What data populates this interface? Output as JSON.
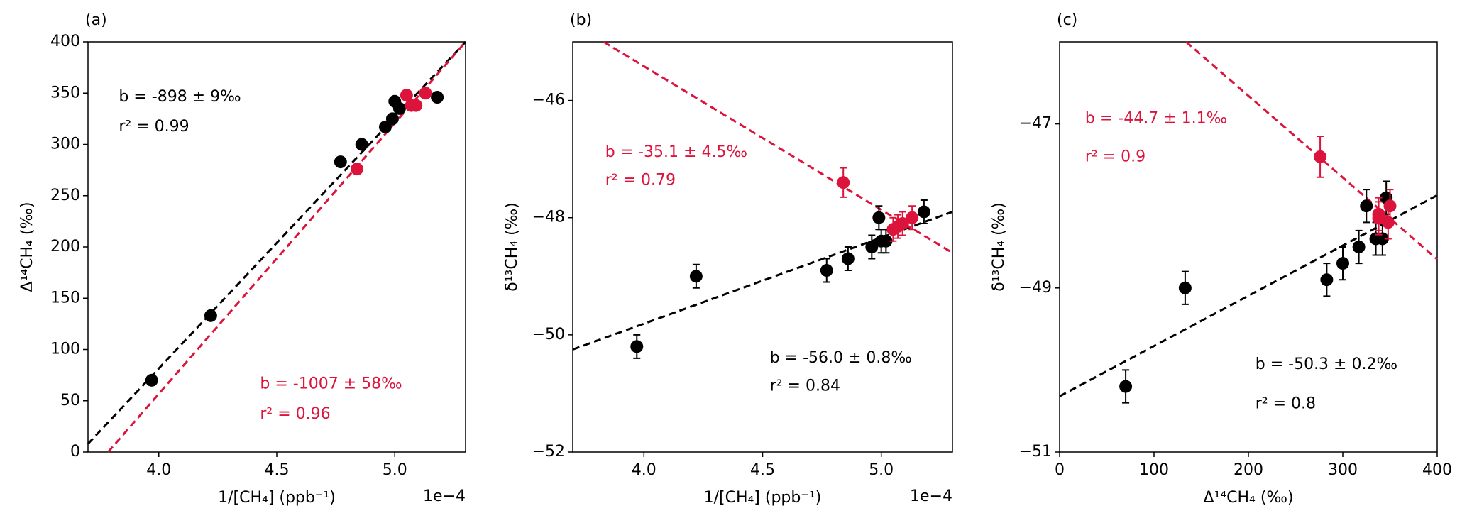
{
  "chart_data": [
    {
      "type": "scatter",
      "panel_label": "(a)",
      "xlabel": "1/[CH₄]  (ppb⁻¹)",
      "ylabel": "Δ¹⁴CH₄ (‰)",
      "x_offset_label": "1e−4",
      "xlim": [
        3.7,
        5.3
      ],
      "ylim": [
        0,
        400
      ],
      "xticks": [
        {
          "value": 4,
          "label": "4.0"
        },
        4.5,
        {
          "value": 5,
          "label": "5.0"
        }
      ],
      "yticks": [
        0,
        50,
        100,
        150,
        200,
        250,
        300,
        350,
        400
      ],
      "series": [
        {
          "color": "#000000",
          "x": [
            3.97,
            4.22,
            4.77,
            4.86,
            4.96,
            4.99,
            5.0,
            5.02,
            5.18
          ],
          "values": [
            70,
            133,
            283,
            300,
            317,
            325,
            342,
            335,
            346
          ]
        },
        {
          "color": "#dc143c",
          "x": [
            4.84,
            5.05,
            5.07,
            5.09,
            5.13
          ],
          "values": [
            276,
            348,
            338,
            338,
            350
          ]
        }
      ],
      "fits": [
        {
          "color": "#000000",
          "x": [
            3.7,
            5.3
          ],
          "values": [
            8,
            400
          ]
        },
        {
          "color": "#dc143c",
          "x": [
            3.785,
            5.3
          ],
          "values": [
            0,
            400
          ]
        }
      ],
      "annotations": [
        {
          "text": "b = -898 ± 9‰",
          "color": "#000000"
        },
        {
          "text": "r² = 0.99",
          "color": "#000000"
        },
        {
          "text": "b = -1007 ± 58‰",
          "color": "#dc143c"
        },
        {
          "text": "r² = 0.96",
          "color": "#dc143c"
        }
      ]
    },
    {
      "type": "scatter",
      "panel_label": "(b)",
      "xlabel": "1/[CH₄] (ppb⁻¹)",
      "ylabel": "δ¹³CH₄ (‰)",
      "x_offset_label": "1e−4",
      "xlim": [
        3.7,
        5.3
      ],
      "ylim": [
        -52,
        -45
      ],
      "xticks": [
        {
          "value": 4,
          "label": "4.0"
        },
        4.5,
        {
          "value": 5,
          "label": "5.0"
        }
      ],
      "yticks": [
        {
          "value": -52,
          "label": "−52"
        },
        {
          "value": -50,
          "label": "−50"
        },
        {
          "value": -48,
          "label": "−48"
        },
        {
          "value": -46,
          "label": "−46"
        }
      ],
      "series": [
        {
          "color": "#000000",
          "x": [
            3.97,
            4.22,
            4.77,
            4.86,
            4.96,
            4.99,
            5.0,
            5.02,
            5.18
          ],
          "values": [
            -50.2,
            -49.0,
            -48.9,
            -48.7,
            -48.5,
            -48.0,
            -48.4,
            -48.4,
            -47.9
          ],
          "errors": [
            0.2,
            0.2,
            0.2,
            0.2,
            0.2,
            0.2,
            0.2,
            0.2,
            0.2
          ]
        },
        {
          "color": "#dc143c",
          "x": [
            4.84,
            5.05,
            5.07,
            5.09,
            5.13
          ],
          "values": [
            -47.4,
            -48.2,
            -48.15,
            -48.1,
            -48.0
          ],
          "errors": [
            0.25,
            0.2,
            0.2,
            0.2,
            0.2
          ]
        }
      ],
      "fits": [
        {
          "color": "#000000",
          "x": [
            3.7,
            5.3
          ],
          "values": [
            -50.25,
            -47.9
          ]
        },
        {
          "color": "#dc143c",
          "x": [
            3.83,
            5.3
          ],
          "values": [
            -45,
            -48.6
          ]
        }
      ],
      "annotations": [
        {
          "text": "b = -35.1 ± 4.5‰",
          "color": "#dc143c"
        },
        {
          "text": "r² = 0.79",
          "color": "#dc143c"
        },
        {
          "text": "b = -56.0 ± 0.8‰",
          "color": "#000000"
        },
        {
          "text": "r² = 0.84",
          "color": "#000000"
        }
      ]
    },
    {
      "type": "scatter",
      "panel_label": "(c)",
      "xlabel": "Δ¹⁴CH₄ (‰)",
      "ylabel": "δ¹³CH₄ (‰)",
      "xlim": [
        0,
        400
      ],
      "ylim": [
        -51,
        -46
      ],
      "xticks": [
        0,
        100,
        200,
        300,
        400
      ],
      "yticks": [
        {
          "value": -51,
          "label": "−51"
        },
        {
          "value": -49,
          "label": "−49"
        },
        {
          "value": -47,
          "label": "−47"
        }
      ],
      "series": [
        {
          "color": "#000000",
          "x": [
            70,
            133,
            283,
            300,
            317,
            325,
            335,
            342,
            346
          ],
          "values": [
            -50.2,
            -49.0,
            -48.9,
            -48.7,
            -48.5,
            -48.0,
            -48.4,
            -48.4,
            -47.9
          ],
          "errors": [
            0.2,
            0.2,
            0.2,
            0.2,
            0.2,
            0.2,
            0.2,
            0.2,
            0.2
          ]
        },
        {
          "color": "#dc143c",
          "x": [
            276,
            338,
            348,
            338,
            350
          ],
          "values": [
            -47.4,
            -48.1,
            -48.2,
            -48.15,
            -48.0
          ],
          "errors": [
            0.25,
            0.2,
            0.2,
            0.2,
            0.2
          ]
        }
      ],
      "fits": [
        {
          "color": "#000000",
          "x": [
            0,
            400
          ],
          "values": [
            -50.32,
            -47.87
          ]
        },
        {
          "color": "#dc143c",
          "x": [
            134,
            400
          ],
          "values": [
            -46,
            -48.65
          ]
        }
      ],
      "annotations": [
        {
          "text": "b = -44.7 ± 1.1‰",
          "color": "#dc143c"
        },
        {
          "text": "r² = 0.9",
          "color": "#dc143c"
        },
        {
          "text": "b = -50.3 ± 0.2‰",
          "color": "#000000"
        },
        {
          "text": "r² = 0.8",
          "color": "#000000"
        }
      ]
    }
  ]
}
